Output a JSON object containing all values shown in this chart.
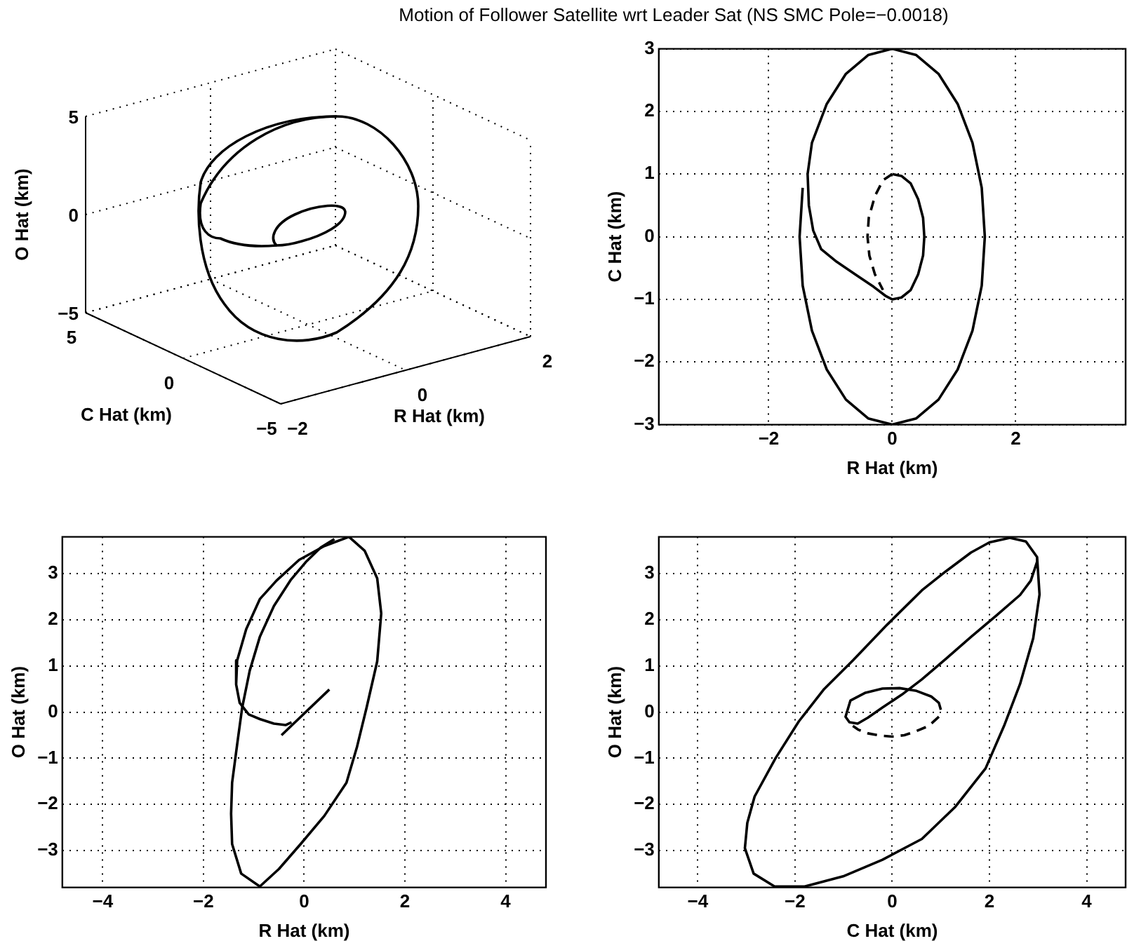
{
  "chart_data": [
    {
      "type": "other",
      "title": "Motion of Follower Satellite wrt Leader Sat (NS SMC Pole=−0.0018)",
      "xlabel": "R Hat (km)",
      "ylabel": "O Hat (km)",
      "y2label": "C Hat (km)",
      "annotations": [
        "5",
        "0",
        "−5",
        "5",
        "0",
        "−5",
        "−2",
        "0",
        "2"
      ]
    },
    {
      "type": "line",
      "xlabel": "R Hat (km)",
      "ylabel": "C Hat (km)",
      "xlim": [
        -3.78,
        3.78
      ],
      "xticks": [
        -2,
        0,
        2
      ],
      "ylim": [
        -3,
        3
      ],
      "yticks": [
        -3,
        -2,
        -1,
        0,
        1,
        2,
        3
      ],
      "grid": true,
      "series": [
        {
          "color": "#000000",
          "line_style": "solid",
          "x": [
            -1.45,
            -1.5,
            -1.45,
            -1.3,
            -1.06,
            -0.75,
            -0.39,
            0,
            0.39,
            0.75,
            1.06,
            1.3,
            1.45,
            1.5,
            1.45,
            1.3,
            1.06,
            0.75,
            0.39,
            0,
            -0.39,
            -0.75,
            -1.06,
            -1.3,
            -1.37,
            -1.35,
            -1.28,
            -1.15,
            -0.9,
            -0.6,
            -0.3,
            -0.1,
            0,
            0.15,
            0.3,
            0.42,
            0.5,
            0.52,
            0.5,
            0.42,
            0.3,
            0.15,
            0
          ],
          "values": [
            0.78,
            0,
            -0.78,
            -1.5,
            -2.12,
            -2.6,
            -2.9,
            -3,
            -2.9,
            -2.6,
            -2.12,
            -1.5,
            -0.78,
            0,
            0.78,
            1.5,
            2.12,
            2.6,
            2.9,
            3,
            2.9,
            2.6,
            2.12,
            1.5,
            1,
            0.5,
            0.1,
            -0.2,
            -0.4,
            -0.6,
            -0.8,
            -0.95,
            -1,
            -0.97,
            -0.85,
            -0.6,
            -0.3,
            0,
            0.3,
            0.6,
            0.85,
            0.97,
            1
          ]
        },
        {
          "color": "#000000",
          "line_style": "dashed",
          "x": [
            0,
            -0.15,
            -0.28,
            -0.38,
            -0.4,
            -0.37,
            -0.28,
            -0.15
          ],
          "values": [
            1,
            0.9,
            0.65,
            0.3,
            0,
            -0.3,
            -0.6,
            -0.85
          ]
        }
      ]
    },
    {
      "type": "line",
      "xlabel": "R Hat (km)",
      "ylabel": "O Hat (km)",
      "xlim": [
        -4.8,
        4.8
      ],
      "xticks": [
        -4,
        -2,
        0,
        2,
        4
      ],
      "ylim": [
        -3.8,
        3.8
      ],
      "yticks": [
        -3,
        -2,
        -1,
        0,
        1,
        2,
        3
      ],
      "grid": true,
      "series": [
        {
          "color": "#000000",
          "line_style": "solid",
          "x": [
            0.89,
            1.2,
            1.45,
            1.53,
            1.45,
            1.24,
            1.05,
            0.84,
            0.4,
            -0.07,
            -0.5,
            -0.88,
            -1.25,
            -1.43,
            -1.45,
            -1.43,
            -1.33,
            -1.23,
            -1.08,
            -0.88,
            -0.6,
            -0.27,
            0.03,
            0.33,
            0.6
          ],
          "values": [
            3.8,
            3.5,
            2.9,
            2.14,
            1.1,
            0.1,
            -0.75,
            -1.53,
            -2.25,
            -2.86,
            -3.4,
            -3.78,
            -3.5,
            -2.86,
            -2.2,
            -1.53,
            -0.7,
            0.1,
            0.9,
            1.63,
            2.3,
            2.86,
            3.25,
            3.57,
            3.75
          ]
        },
        {
          "color": "#000000",
          "line_style": "solid",
          "x": [
            0.89,
            0.4,
            -0.1,
            -0.55,
            -0.88,
            -1.15,
            -1.33,
            -1.35,
            -1.28,
            -1.1,
            -0.88,
            -0.6,
            -0.37,
            -0.25
          ],
          "values": [
            3.8,
            3.6,
            3.3,
            2.85,
            2.45,
            1.8,
            1.12,
            0.6,
            0.2,
            -0.05,
            -0.15,
            -0.25,
            -0.28,
            -0.22
          ]
        },
        {
          "color": "#000000",
          "line_style": "solid",
          "x": [
            -0.45,
            0.5
          ],
          "values": [
            -0.5,
            0.49
          ]
        }
      ]
    },
    {
      "type": "line",
      "xlabel": "C Hat (km)",
      "ylabel": "O Hat (km)",
      "xlim": [
        -4.8,
        4.8
      ],
      "xticks": [
        -4,
        -2,
        0,
        2,
        4
      ],
      "ylim": [
        -3.8,
        3.8
      ],
      "yticks": [
        -3,
        -2,
        -1,
        0,
        1,
        2,
        3
      ],
      "grid": true,
      "series": [
        {
          "color": "#000000",
          "line_style": "solid",
          "x": [
            2.42,
            2.75,
            2.98,
            3.03,
            2.9,
            2.63,
            2.3,
            1.92,
            1.3,
            0.61,
            -0.2,
            -1.01,
            -1.8,
            -2.42,
            -2.85,
            -3.03,
            -2.98,
            -2.83,
            -2.4,
            -1.92,
            -1.4,
            -0.81,
            -0.1,
            0.61,
            1.1,
            1.62,
            2,
            2.42,
            2.75,
            2.98,
            2.98,
            2.85,
            2.63,
            2.15,
            1.62,
            1.1,
            0.61,
            0.2,
            -0.2,
            -0.5,
            -0.71,
            -0.88,
            -0.96,
            -0.86,
            -0.55,
            -0.2,
            0.15,
            0.5,
            0.8,
            0.96,
            1
          ],
          "values": [
            3.78,
            3.7,
            3.36,
            2.55,
            1.6,
            0.61,
            -0.3,
            -1.22,
            -2.05,
            -2.75,
            -3.2,
            -3.56,
            -3.78,
            -3.78,
            -3.5,
            -2.95,
            -2.4,
            -1.83,
            -1,
            -0.2,
            0.5,
            1.12,
            1.9,
            2.64,
            3.05,
            3.46,
            3.68,
            3.78,
            3.7,
            3.36,
            3.26,
            2.85,
            2.54,
            2.1,
            1.63,
            1.15,
            0.71,
            0.38,
            0.1,
            -0.12,
            -0.25,
            -0.22,
            -0.1,
            0.25,
            0.42,
            0.51,
            0.52,
            0.46,
            0.34,
            0.2,
            0.05
          ]
        },
        {
          "color": "#000000",
          "line_style": "dashed",
          "x": [
            0.96,
            0.75,
            0.5,
            0.25,
            0,
            -0.25,
            -0.5,
            -0.7,
            -0.81
          ],
          "values": [
            -0.1,
            -0.3,
            -0.41,
            -0.5,
            -0.53,
            -0.51,
            -0.46,
            -0.38,
            -0.3
          ]
        }
      ]
    }
  ]
}
